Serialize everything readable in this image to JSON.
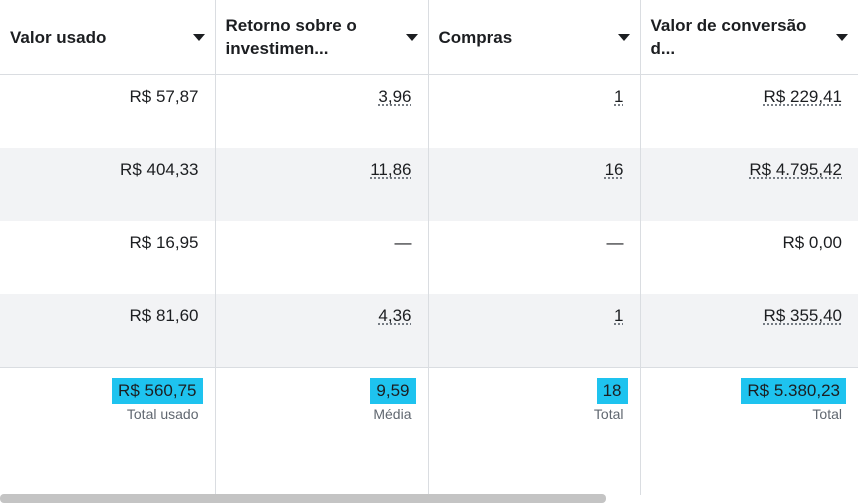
{
  "columns": [
    {
      "label": "Valor usado"
    },
    {
      "label": "Retorno sobre o investimen..."
    },
    {
      "label": "Compras"
    },
    {
      "label": "Valor de conversão d..."
    }
  ],
  "rows": [
    [
      "R$ 57,87",
      "3,96",
      "1",
      "R$ 229,41"
    ],
    [
      "R$ 404,33",
      "11,86",
      "16",
      "R$ 4.795,42"
    ],
    [
      "R$ 16,95",
      "—",
      "—",
      "R$ 0,00"
    ],
    [
      "R$ 81,60",
      "4,36",
      "1",
      "R$ 355,40"
    ]
  ],
  "totals": [
    {
      "value": "R$ 560,75",
      "label": "Total usado"
    },
    {
      "value": "9,59",
      "label": "Média"
    },
    {
      "value": "18",
      "label": "Total"
    },
    {
      "value": "R$ 5.380,23",
      "label": "Total"
    }
  ],
  "highlight_color": "#1ec3ef"
}
